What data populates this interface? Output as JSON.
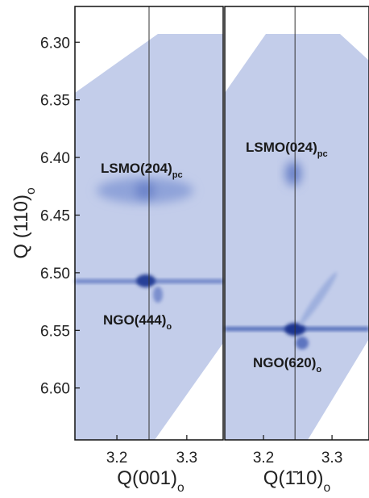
{
  "chart_data": [
    {
      "type": "heatmap",
      "y_label": "Q (110)",
      "y_label_sub": "o",
      "x_label": "Q(001)",
      "x_label_sub": "o",
      "xlim": [
        3.14,
        3.352
      ],
      "xticks": [
        3.2,
        3.3
      ],
      "ylim": [
        6.645,
        6.269
      ],
      "yticks": [
        {
          "value": 6.3,
          "label": "6.30"
        },
        6.35,
        {
          "value": 6.4,
          "label": "6.40"
        },
        6.45,
        {
          "value": 6.5,
          "label": "6.50"
        },
        6.55,
        {
          "value": 6.6,
          "label": "6.60"
        }
      ],
      "reference_x": 3.246,
      "annotations": [
        {
          "text": "LSMO(204)",
          "sub": "pc"
        },
        {
          "text": "NGO(444)",
          "sub": "o"
        }
      ],
      "color": "#5a76c2"
    },
    {
      "type": "heatmap",
      "x_label": "Q(1̄10)",
      "x_label_sub": "o",
      "xlim": [
        3.1435,
        3.354
      ],
      "xticks": [
        3.2,
        3.3
      ],
      "ylim": [
        6.645,
        6.269
      ],
      "reference_x": 3.246,
      "annotations": [
        {
          "text": "LSMO(024)",
          "sub": "pc"
        },
        {
          "text": "NGO(620)",
          "sub": "o"
        }
      ],
      "color": "#5a76c2"
    }
  ]
}
